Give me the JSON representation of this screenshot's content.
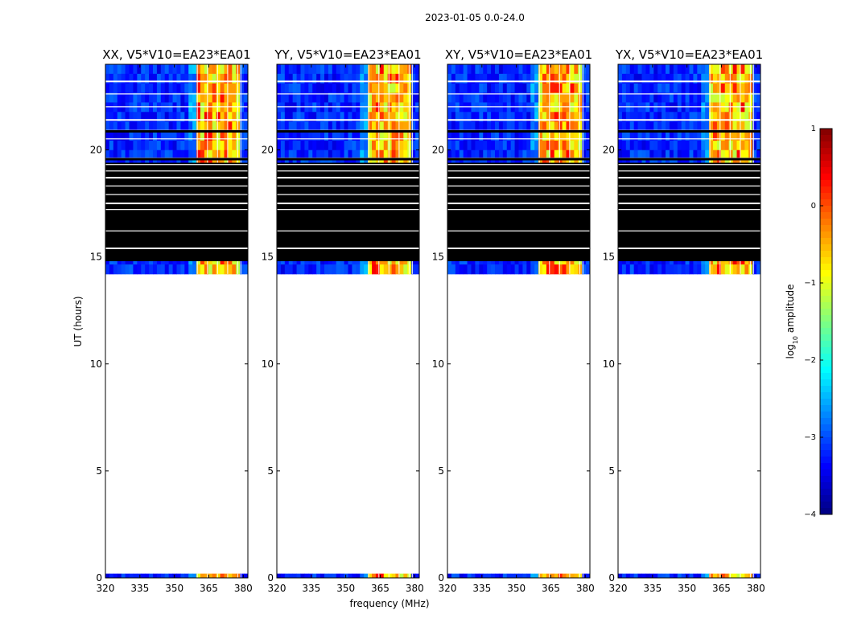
{
  "chart_data": {
    "type": "heatmap",
    "suptitle": "2023-01-05 0.0-24.0",
    "xlabel": "frequency (MHz)",
    "ylabel": "UT (hours)",
    "xlim": [
      320,
      382
    ],
    "ylim": [
      0,
      24
    ],
    "xticks": [
      320,
      335,
      350,
      365,
      380
    ],
    "xtick_labels": [
      "320",
      "335",
      "350",
      "365",
      "380"
    ],
    "yticks": [
      0,
      5,
      10,
      15,
      20
    ],
    "ytick_labels": [
      "0",
      "5",
      "10",
      "15",
      "20"
    ],
    "colorbar": {
      "label": "log10 amplitude",
      "label_main": "log",
      "label_sub": "10",
      "label_rest": " amplitude",
      "range": [
        -4,
        1
      ],
      "ticks": [
        1,
        0,
        -1,
        -2,
        -3,
        -4
      ],
      "tick_labels": [
        "1",
        "0",
        "−1",
        "−2",
        "−3",
        "−4"
      ],
      "colormap": "jet"
    },
    "panels": [
      {
        "title": "XX, V5*V10=EA23*EA01",
        "strong_band": [
          360,
          375
        ]
      },
      {
        "title": "YY, V5*V10=EA23*EA01",
        "strong_band": [
          362,
          375
        ]
      },
      {
        "title": "XY, V5*V10=EA23*EA01",
        "strong_band": [
          362,
          375
        ]
      },
      {
        "title": "YX, V5*V10=EA23*EA01",
        "strong_band": [
          362,
          375
        ]
      }
    ],
    "data_time_ranges": [
      [
        0.0,
        0.2
      ],
      [
        14.2,
        24.0
      ]
    ],
    "flagged_time_range": [
      14.8,
      19.4
    ],
    "rfi_band": [
      360,
      379
    ],
    "rfi_channel_edges": [
      360,
      364.4,
      368.8,
      373.2,
      377.6,
      379
    ],
    "background_level": -3.2,
    "rfi_level": -0.8
  }
}
